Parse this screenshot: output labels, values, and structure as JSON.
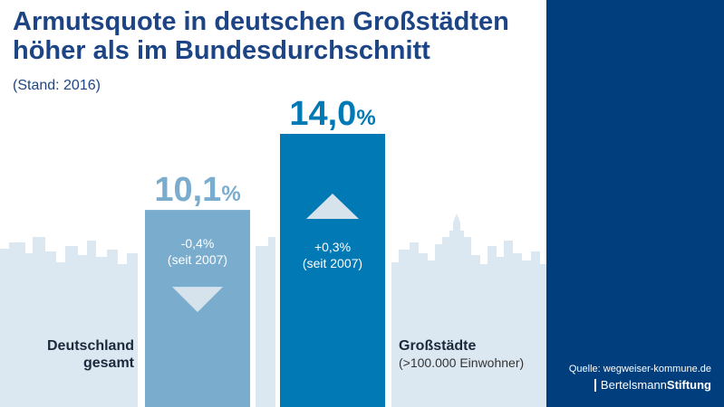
{
  "title_lines": [
    "Armutsquote in deutschen Großstädten",
    "höher als im Bundesdurchschnitt"
  ],
  "subtitle": "(Stand: 2016)",
  "source": "Quelle: wegweiser-kommune.de",
  "brand": {
    "part1": "Bertelsmann",
    "part2": "Stiftung"
  },
  "colors": {
    "title": "#1d4585",
    "panel": "#003e7e",
    "bar_deutschland": "#7aaccd",
    "bar_grossstaedte": "#0079b4",
    "value_deutschland": "#7aaccd",
    "value_grossstaedte": "#0079b4",
    "skyline": "#dce8f1",
    "arrow": "#d6e3ed"
  },
  "chart_data": {
    "type": "bar",
    "unit": "%",
    "categories": [
      "Deutschland gesamt",
      "Großstädte"
    ],
    "values": [
      10.1,
      14.0
    ],
    "ylim": [
      0,
      14.0
    ],
    "bars": [
      {
        "name_lines": [
          "Deutschland",
          "gesamt"
        ],
        "note": "",
        "value": 10.1,
        "value_label": "10,1",
        "change": "-0,4%",
        "change_since": "(seit 2007)",
        "trend": "down",
        "color": "#7aaccd"
      },
      {
        "name_lines": [
          "Großstädte"
        ],
        "note": "(>100.000 Einwohner)",
        "value": 14.0,
        "value_label": "14,0",
        "change": "+0,3%",
        "change_since": "(seit 2007)",
        "trend": "up",
        "color": "#0079b4"
      }
    ]
  }
}
